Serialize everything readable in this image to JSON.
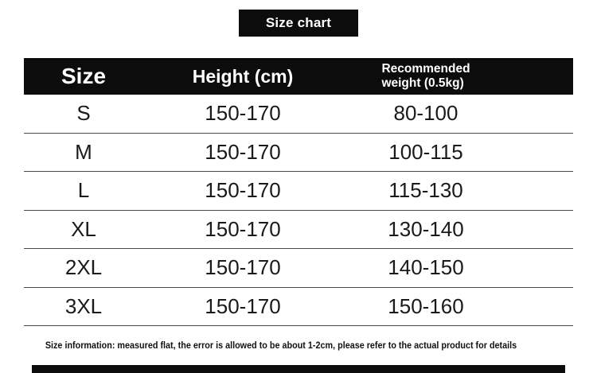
{
  "title_badge": {
    "label": "Size chart"
  },
  "table": {
    "headers": {
      "size": "Size",
      "height": "Height (cm)",
      "weight_line1": "Recommended",
      "weight_line2": "weight (0.5kg)"
    },
    "rows": [
      {
        "size": "S",
        "height": "150-170",
        "weight": "80-100"
      },
      {
        "size": "M",
        "height": "150-170",
        "weight": "100-115"
      },
      {
        "size": "L",
        "height": "150-170",
        "weight": "115-130"
      },
      {
        "size": "XL",
        "height": "150-170",
        "weight": "130-140"
      },
      {
        "size": "2XL",
        "height": "150-170",
        "weight": "140-150"
      },
      {
        "size": "3XL",
        "height": "150-170",
        "weight": "150-160"
      }
    ]
  },
  "footnote": "Size information: measured flat, the error is allowed to be about 1-2cm, please refer to the actual product for details",
  "colors": {
    "accent_black": "#0c0c0c",
    "divider": "#4a4a4a",
    "background": "#ffffff"
  },
  "chart_data": {
    "type": "table",
    "title": "Size chart",
    "columns": [
      "Size",
      "Height (cm)",
      "Recommended weight (0.5kg)"
    ],
    "rows": [
      [
        "S",
        "150-170",
        "80-100"
      ],
      [
        "M",
        "150-170",
        "100-115"
      ],
      [
        "L",
        "150-170",
        "115-130"
      ],
      [
        "XL",
        "150-170",
        "130-140"
      ],
      [
        "2XL",
        "150-170",
        "140-150"
      ],
      [
        "3XL",
        "150-170",
        "150-160"
      ]
    ],
    "footnote": "Size information: measured flat, the error is allowed to be about 1-2cm, please refer to the actual product for details"
  }
}
